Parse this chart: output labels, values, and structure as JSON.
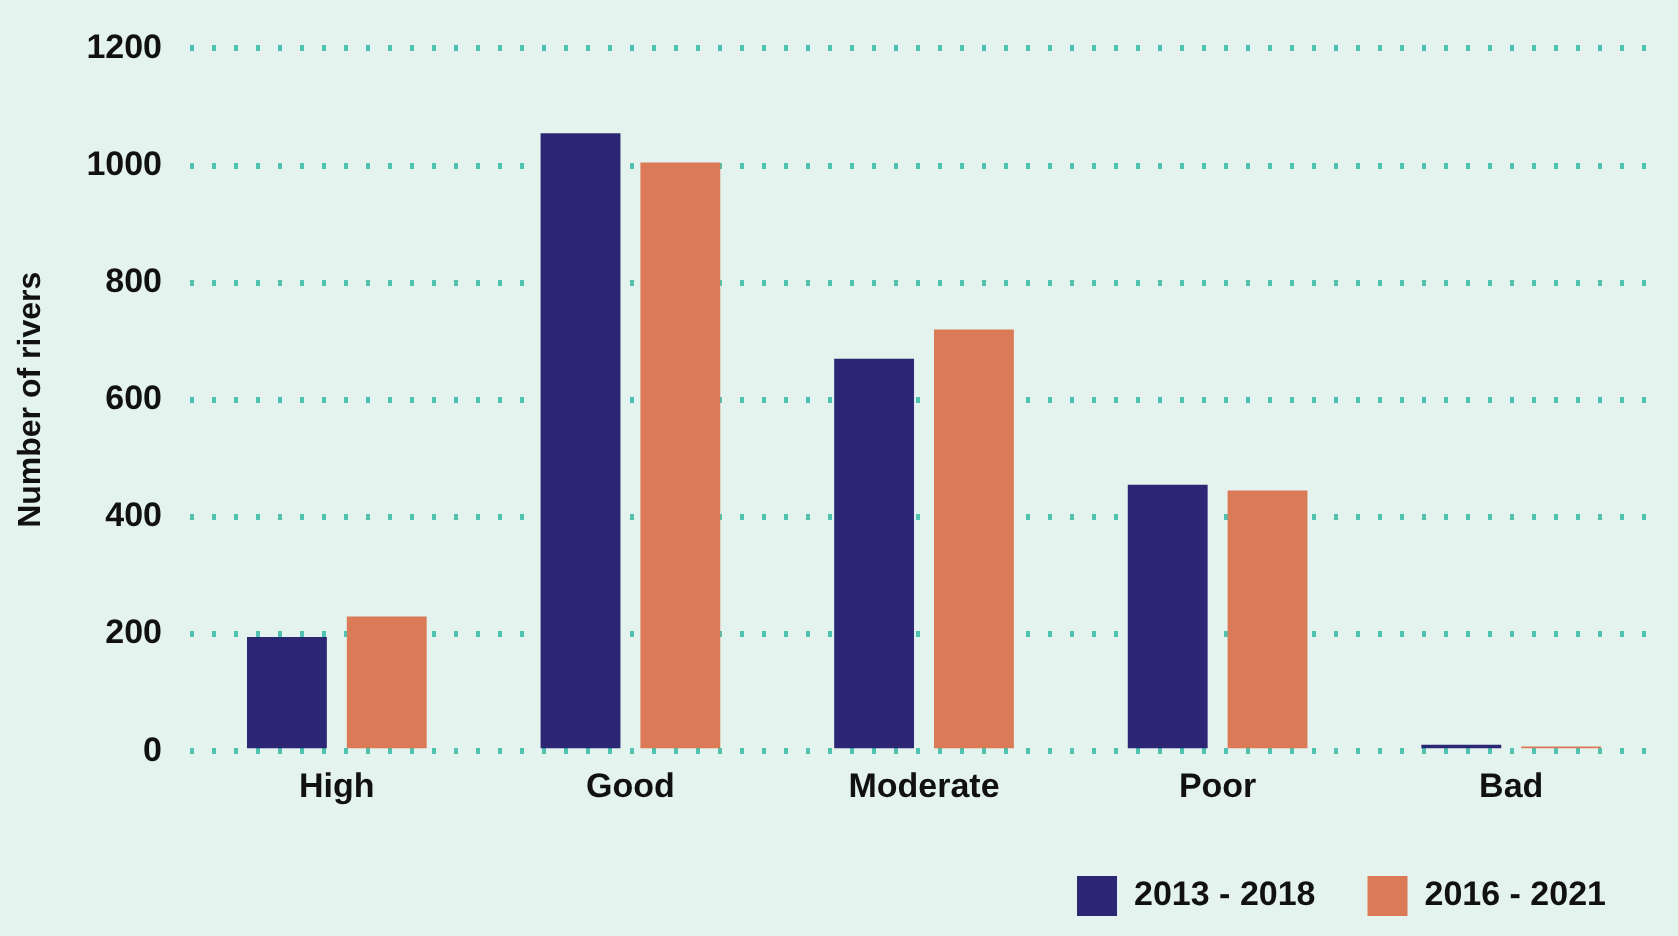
{
  "chart_data": {
    "type": "bar",
    "ylabel": "Number of rivers",
    "categories": [
      "High",
      "Good",
      "Moderate",
      "Poor",
      "Bad"
    ],
    "series": [
      {
        "name": "2013 - 2018",
        "color": "#2b2774",
        "values": [
          195,
          1055,
          670,
          455,
          11
        ]
      },
      {
        "name": "2016 - 2021",
        "color": "#db7a56",
        "values": [
          230,
          1005,
          720,
          445,
          8
        ]
      }
    ],
    "ylim": [
      0,
      1200
    ],
    "yticks": [
      0,
      200,
      400,
      600,
      800,
      1000,
      1200
    ],
    "grid": "y",
    "legend": "bottom right"
  }
}
